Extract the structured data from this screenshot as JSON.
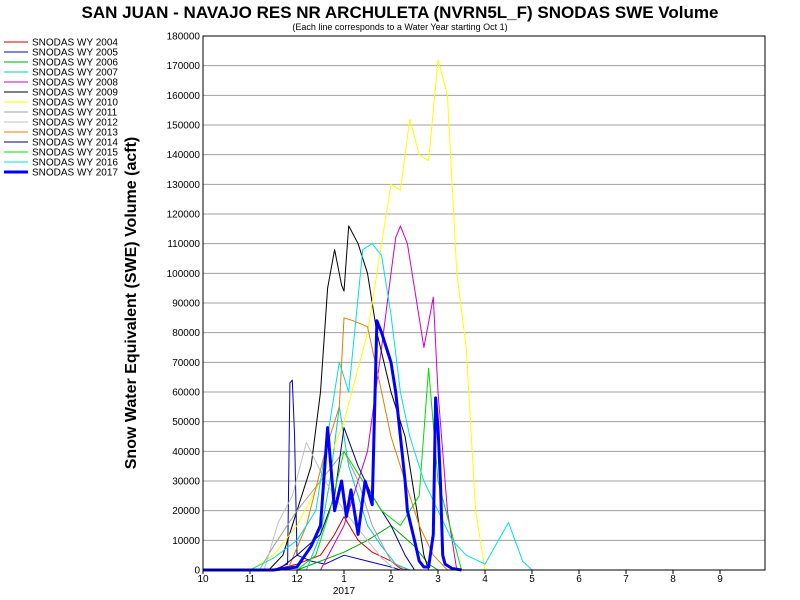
{
  "chart_data": {
    "type": "line",
    "title": "SAN JUAN - NAVAJO RES NR ARCHULETA (NVRN5L_F) SNODAS SWE Volume",
    "subtitle": "(Each line corresponds to a Water Year starting Oct 1)",
    "ylabel": "Snow Water Equivalent (SWE) Volume (acft)",
    "x_tick_labels": [
      "10",
      "11",
      "12",
      "1",
      "2",
      "3",
      "4",
      "5",
      "6",
      "7",
      "8",
      "9"
    ],
    "x_year_label": "2017",
    "xlim": [
      0,
      12
    ],
    "ylim": [
      0,
      180000
    ],
    "y_ticks": [
      0,
      10000,
      20000,
      30000,
      40000,
      50000,
      60000,
      70000,
      80000,
      90000,
      100000,
      110000,
      120000,
      130000,
      140000,
      150000,
      160000,
      170000,
      180000
    ],
    "grid": true,
    "legend_position": "left",
    "series": [
      {
        "name": "SNODAS WY 2004",
        "color": "#cc0000",
        "width": 1,
        "x": [
          0,
          1.5,
          2.0,
          2.5,
          2.8,
          3.0,
          3.3,
          3.6,
          4.0,
          4.2,
          4.4
        ],
        "y": [
          0,
          0,
          2000,
          5000,
          12000,
          18000,
          10000,
          6000,
          3000,
          500,
          0
        ]
      },
      {
        "name": "SNODAS WY 2005",
        "color": "#0000cc",
        "width": 1,
        "x": [
          0,
          1.5,
          1.8,
          1.85,
          1.9,
          1.95,
          2.0,
          2.3,
          2.6,
          3.0,
          3.5,
          4.0,
          4.2
        ],
        "y": [
          0,
          0,
          2000,
          63000,
          64000,
          45000,
          5000,
          3000,
          2000,
          5000,
          3000,
          1000,
          0
        ]
      },
      {
        "name": "SNODAS WY 2006",
        "color": "#00aa00",
        "width": 1,
        "x": [
          0,
          2.0,
          2.5,
          3.0,
          3.5,
          4.0,
          4.5,
          4.8,
          5.0
        ],
        "y": [
          0,
          0,
          3000,
          6000,
          10000,
          15000,
          8000,
          2000,
          0
        ]
      },
      {
        "name": "SNODAS WY 2007",
        "color": "#00cccc",
        "width": 1,
        "x": [
          0,
          2.2,
          2.5,
          2.7,
          2.9,
          3.1,
          3.3,
          3.5,
          3.8,
          4.1,
          4.4
        ],
        "y": [
          0,
          0,
          12000,
          30000,
          55000,
          35000,
          25000,
          15000,
          8000,
          2000,
          0
        ]
      },
      {
        "name": "SNODAS WY 2008",
        "color": "#cc00cc",
        "width": 1,
        "x": [
          0,
          2.5,
          3.0,
          3.5,
          3.8,
          4.0,
          4.1,
          4.2,
          4.35,
          4.5,
          4.7,
          4.9,
          5.0,
          5.2,
          5.4
        ],
        "y": [
          0,
          0,
          15000,
          40000,
          75000,
          100000,
          112000,
          116000,
          110000,
          95000,
          75000,
          92000,
          60000,
          20000,
          0
        ]
      },
      {
        "name": "SNODAS WY 2009",
        "color": "#000000",
        "width": 1,
        "x": [
          0,
          1.4,
          1.7,
          2.0,
          2.3,
          2.5,
          2.65,
          2.8,
          2.95,
          3.0,
          3.1,
          3.3,
          3.5,
          3.7,
          4.0,
          4.3,
          4.5,
          4.7,
          4.8
        ],
        "y": [
          0,
          0,
          5000,
          20000,
          35000,
          60000,
          95000,
          108000,
          96000,
          94000,
          116000,
          110000,
          100000,
          80000,
          60000,
          45000,
          25000,
          5000,
          0
        ]
      },
      {
        "name": "SNODAS WY 2010",
        "color": "#ffff00",
        "width": 1,
        "x": [
          0,
          1.0,
          1.5,
          2.0,
          2.5,
          3.0,
          3.5,
          3.8,
          4.0,
          4.2,
          4.4,
          4.6,
          4.8,
          5.0,
          5.2,
          5.4,
          5.6,
          5.8,
          6.0
        ],
        "y": [
          0,
          0,
          5000,
          15000,
          30000,
          50000,
          80000,
          110000,
          130000,
          128000,
          152000,
          140000,
          138000,
          172000,
          160000,
          100000,
          75000,
          20000,
          0
        ]
      },
      {
        "name": "SNODAS WY 2011",
        "color": "#a0a0a0",
        "width": 1,
        "x": [
          0,
          1.2,
          1.5,
          2.0,
          2.5,
          3.0,
          3.3,
          3.6,
          4.0,
          4.3
        ],
        "y": [
          0,
          0,
          8000,
          20000,
          30000,
          40000,
          30000,
          15000,
          3000,
          0
        ]
      },
      {
        "name": "SNODAS WY 2012",
        "color": "#c0c0c0",
        "width": 1,
        "x": [
          0,
          1.3,
          1.6,
          1.9,
          2.2,
          2.6,
          3.0,
          3.4,
          3.8,
          4.1
        ],
        "y": [
          0,
          0,
          16000,
          25000,
          43000,
          30000,
          20000,
          12000,
          4000,
          0
        ]
      },
      {
        "name": "SNODAS WY 2013",
        "color": "#e08000",
        "width": 1,
        "x": [
          0,
          1.8,
          2.2,
          2.6,
          2.9,
          3.0,
          3.2,
          3.5,
          3.8,
          4.0,
          4.3,
          4.6,
          4.9,
          5.2
        ],
        "y": [
          0,
          0,
          15000,
          40000,
          55000,
          85000,
          84000,
          82000,
          60000,
          45000,
          30000,
          15000,
          5000,
          0
        ]
      },
      {
        "name": "SNODAS WY 2014",
        "color": "#000080",
        "width": 1,
        "x": [
          0,
          1.6,
          2.0,
          2.5,
          2.8,
          3.0,
          3.3,
          3.6,
          4.0,
          4.3,
          4.5
        ],
        "y": [
          0,
          0,
          5000,
          12000,
          25000,
          48000,
          35000,
          25000,
          15000,
          5000,
          0
        ]
      },
      {
        "name": "SNODAS WY 2015",
        "color": "#00dd00",
        "width": 1,
        "x": [
          0,
          2.0,
          2.4,
          2.7,
          3.0,
          3.4,
          3.8,
          4.2,
          4.6,
          4.8,
          5.0,
          5.2,
          5.5
        ],
        "y": [
          0,
          0,
          5000,
          20000,
          40000,
          30000,
          20000,
          15000,
          25000,
          68000,
          30000,
          18000,
          0
        ]
      },
      {
        "name": "SNODAS WY 2016",
        "color": "#00e0e0",
        "width": 1,
        "x": [
          0,
          1.0,
          1.5,
          2.0,
          2.4,
          2.7,
          2.9,
          3.1,
          3.4,
          3.6,
          3.8,
          4.0,
          4.2,
          4.4,
          4.7,
          5.0,
          5.3,
          5.6,
          6.0,
          6.5,
          6.8,
          7.0
        ],
        "y": [
          0,
          0,
          4000,
          10000,
          20000,
          50000,
          70000,
          60000,
          108000,
          110000,
          106000,
          86000,
          60000,
          45000,
          30000,
          20000,
          10000,
          5000,
          2000,
          16000,
          3000,
          0
        ]
      },
      {
        "name": "SNODAS WY 2017",
        "color": "#0000ff",
        "width": 3,
        "x": [
          0,
          1.5,
          2.0,
          2.3,
          2.5,
          2.65,
          2.8,
          2.95,
          3.05,
          3.15,
          3.3,
          3.45,
          3.6,
          3.7,
          3.8,
          3.9,
          4.0,
          4.1,
          4.2,
          4.3,
          4.35,
          4.5,
          4.6,
          4.7,
          4.8,
          4.9,
          4.95,
          5.0,
          5.05,
          5.1,
          5.15,
          5.3,
          5.5
        ],
        "y": [
          0,
          0,
          1000,
          8000,
          15000,
          48000,
          20000,
          30000,
          18000,
          27000,
          12000,
          30000,
          22000,
          84000,
          80000,
          75000,
          70000,
          60000,
          45000,
          30000,
          20000,
          10000,
          3000,
          1000,
          1000,
          12000,
          58000,
          48000,
          30000,
          5000,
          2000,
          500,
          0
        ]
      }
    ]
  }
}
